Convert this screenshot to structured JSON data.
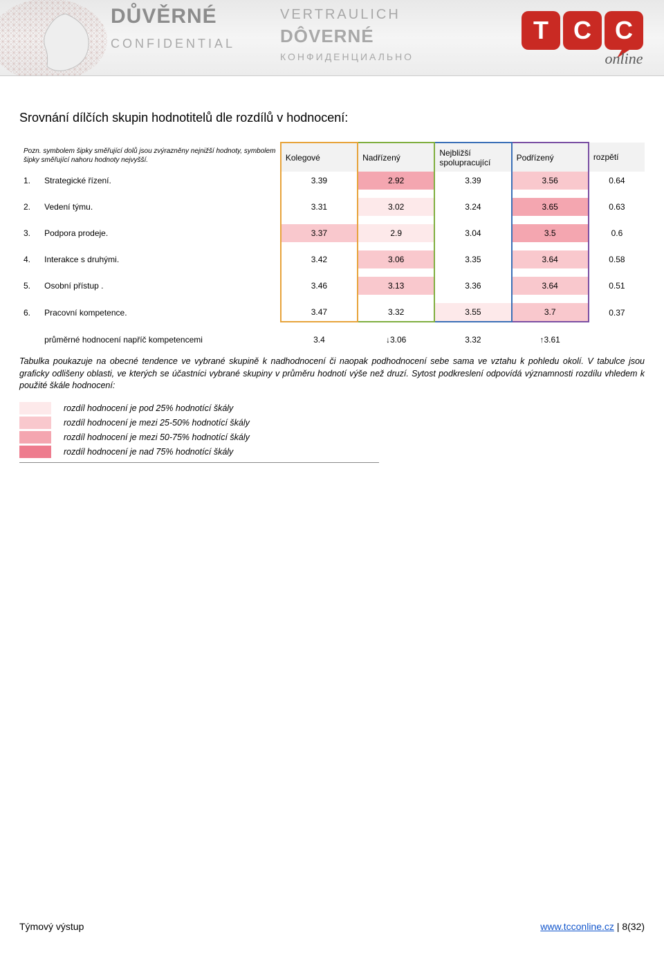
{
  "banner": {
    "words": {
      "duverne": "DŮVĚRNÉ",
      "confidential": "CONFIDENTIAL",
      "vertraulich": "VERTRAULICH",
      "doverne": "DÔVERNÉ",
      "cyrillic": "КОНФИДЕНЦИАЛЬНО"
    },
    "logo_letters": "TCC",
    "logo_sub": "online",
    "logo_red": "#c92a23"
  },
  "page_title": "Srovnání dílčích skupin hodnotitelů dle rozdílů v hodnocení:",
  "note_text": "Pozn. symbolem šipky směřující dolů jsou zvýrazněny nejnižší hodnoty, symbolem šipky směřující nahoru hodnoty nejvyšší.",
  "columns": {
    "c1": "Kolegové",
    "c2": "Nadřízený",
    "c3": "Nejbližší spolupracující",
    "c4": "Podřízený",
    "c5": "rozpětí"
  },
  "col_border_colors": {
    "c1": "#e7a33a",
    "c2": "#7fae3f",
    "c3": "#3a6fb7",
    "c4": "#7a4fa3"
  },
  "row_shades": {
    "s0": "#ffffff",
    "s1": "#fde9ea",
    "s2": "#f9c8cd",
    "s3": "#f4a6b0",
    "s4": "#ee7c8e"
  },
  "rows": [
    {
      "n": "1.",
      "name": "Strategické řízení.",
      "v": [
        "3.39",
        "2.92",
        "3.39",
        "3.56",
        "0.64"
      ],
      "bg": [
        "s0",
        "s3",
        "s0",
        "s2",
        "s0"
      ]
    },
    {
      "n": "2.",
      "name": "Vedení týmu.",
      "v": [
        "3.31",
        "3.02",
        "3.24",
        "3.65",
        "0.63"
      ],
      "bg": [
        "s0",
        "s1",
        "s0",
        "s3",
        "s0"
      ]
    },
    {
      "n": "3.",
      "name": "Podpora prodeje.",
      "v": [
        "3.37",
        "2.9",
        "3.04",
        "3.5",
        "0.6"
      ],
      "bg": [
        "s2",
        "s1",
        "s0",
        "s3",
        "s0"
      ]
    },
    {
      "n": "4.",
      "name": "Interakce s druhými.",
      "v": [
        "3.42",
        "3.06",
        "3.35",
        "3.64",
        "0.58"
      ],
      "bg": [
        "s0",
        "s2",
        "s0",
        "s2",
        "s0"
      ]
    },
    {
      "n": "5.",
      "name": "Osobní přístup .",
      "v": [
        "3.46",
        "3.13",
        "3.36",
        "3.64",
        "0.51"
      ],
      "bg": [
        "s0",
        "s2",
        "s0",
        "s2",
        "s0"
      ]
    },
    {
      "n": "6.",
      "name": "Pracovní kompetence.",
      "v": [
        "3.47",
        "3.32",
        "3.55",
        "3.7",
        "0.37"
      ],
      "bg": [
        "s0",
        "s0",
        "s1",
        "s2",
        "s0"
      ]
    }
  ],
  "avg": {
    "label": "průměrné hodnocení napříč kompetencemi",
    "values": [
      "3.4",
      "↓3.06",
      "3.32",
      "↑3.61"
    ]
  },
  "description": "Tabulka poukazuje na obecné tendence ve vybrané skupině k nadhodnocení či naopak podhodnocení sebe sama ve vztahu k pohledu okolí. V tabulce jsou graficky odlišeny oblasti, ve kterých se účastníci vybrané skupiny v průměru hodnotí výše než druzí. Sytost podkreslení odpovídá významnosti rozdílu vhledem k použité škále hodnocení:",
  "legend": [
    {
      "shade": "s1",
      "text": "rozdíl hodnocení je pod 25% hodnotící škály"
    },
    {
      "shade": "s2",
      "text": "rozdíl hodnocení je mezi 25-50% hodnotící škály"
    },
    {
      "shade": "s3",
      "text": "rozdíl hodnocení je mezi 50-75% hodnotící škály"
    },
    {
      "shade": "s4",
      "text": "rozdíl hodnocení je nad 75% hodnotící škály"
    }
  ],
  "footer": {
    "left": "Týmový výstup",
    "link_text": "www.tcconline.cz",
    "page_sep": " | ",
    "page_num": "8(32)"
  }
}
